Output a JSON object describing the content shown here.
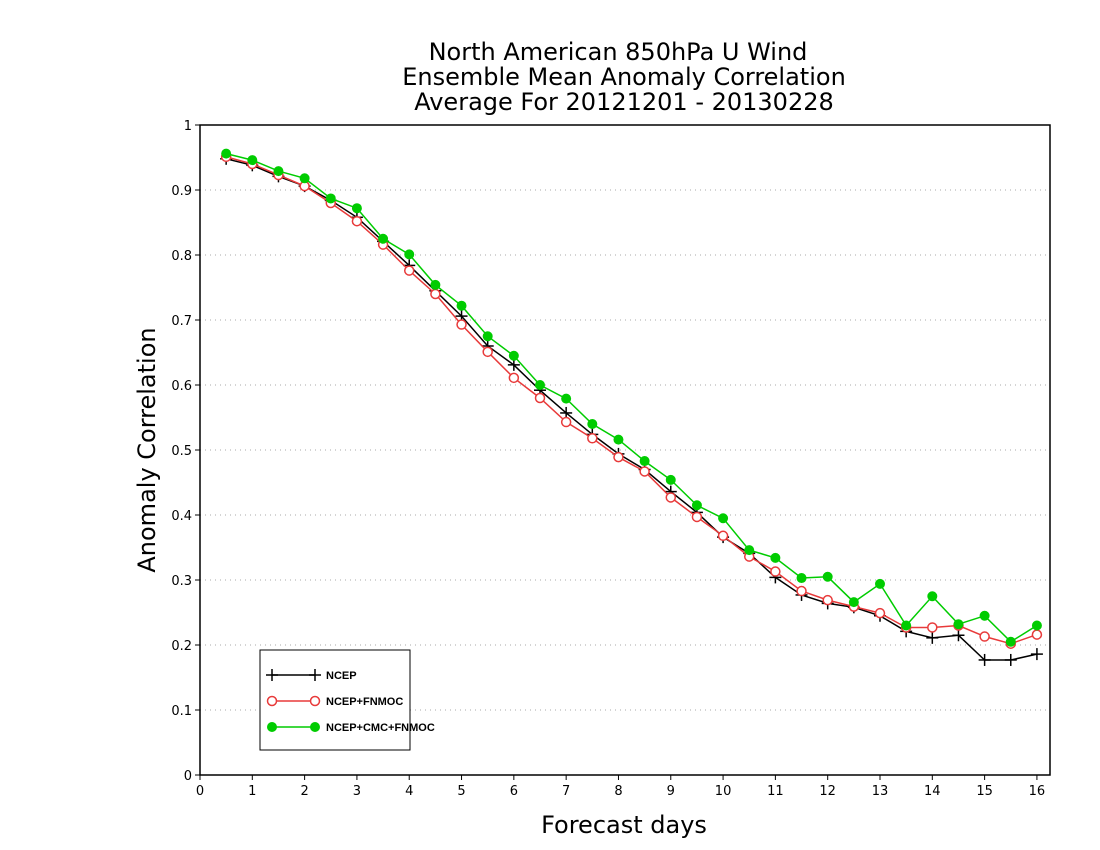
{
  "chart_data": {
    "type": "line",
    "title": [
      "North American 850hPa U Wind",
      "Ensemble Mean Anomaly Correlation",
      "Average For 20121201 - 20130228"
    ],
    "xlabel": "Forecast days",
    "ylabel": "Anomaly Correlation",
    "xlim": [
      0,
      16.25
    ],
    "ylim": [
      0,
      1
    ],
    "xticks": [
      "0",
      "1",
      "2",
      "3",
      "4",
      "5",
      "6",
      "7",
      "8",
      "9",
      "10",
      "11",
      "12",
      "13",
      "14",
      "15",
      "16"
    ],
    "yticks": [
      "0",
      "0.1",
      "0.2",
      "0.3",
      "0.4",
      "0.5",
      "0.6",
      "0.7",
      "0.8",
      "0.9",
      "1"
    ],
    "grid": "horizontal-dotted",
    "legend_position": "bottom-left",
    "x": [
      0.5,
      1,
      1.5,
      2,
      2.5,
      3,
      3.5,
      4,
      4.5,
      5,
      5.5,
      6,
      6.5,
      7,
      7.5,
      8,
      8.5,
      9,
      9.5,
      10,
      10.5,
      11,
      11.5,
      12,
      12.5,
      13,
      13.5,
      14,
      14.5,
      15,
      15.5,
      16
    ],
    "series": [
      {
        "name": "NCEP",
        "color": "#000000",
        "marker": "plus",
        "values": [
          0.948,
          0.938,
          0.921,
          0.906,
          0.884,
          0.858,
          0.821,
          0.784,
          0.745,
          0.706,
          0.66,
          0.631,
          0.592,
          0.557,
          0.524,
          0.494,
          0.47,
          0.436,
          0.404,
          0.366,
          0.341,
          0.304,
          0.277,
          0.264,
          0.258,
          0.245,
          0.221,
          0.211,
          0.215,
          0.177,
          0.177,
          0.186
        ]
      },
      {
        "name": "NCEP+FNMOC",
        "color": "#e83a3a",
        "marker": "open-circle",
        "values": [
          0.951,
          0.94,
          0.923,
          0.906,
          0.88,
          0.852,
          0.816,
          0.776,
          0.74,
          0.693,
          0.651,
          0.611,
          0.58,
          0.543,
          0.518,
          0.489,
          0.467,
          0.427,
          0.397,
          0.368,
          0.336,
          0.313,
          0.283,
          0.269,
          0.259,
          0.249,
          0.227,
          0.227,
          0.23,
          0.213,
          0.202,
          0.216
        ]
      },
      {
        "name": "NCEP+CMC+FNMOC",
        "color": "#00cc00",
        "marker": "filled-circle",
        "values": [
          0.956,
          0.946,
          0.929,
          0.918,
          0.887,
          0.872,
          0.825,
          0.801,
          0.754,
          0.722,
          0.675,
          0.645,
          0.6,
          0.579,
          0.54,
          0.516,
          0.483,
          0.454,
          0.415,
          0.395,
          0.346,
          0.334,
          0.303,
          0.305,
          0.266,
          0.294,
          0.23,
          0.275,
          0.232,
          0.245,
          0.205,
          0.23
        ]
      }
    ]
  }
}
